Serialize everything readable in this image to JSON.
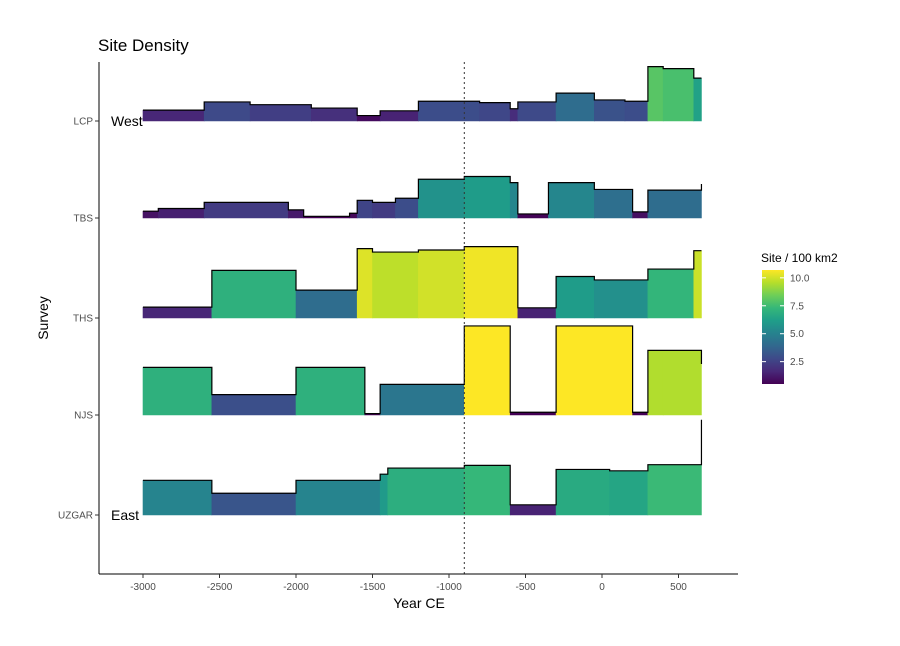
{
  "chart_data": {
    "type": "area",
    "title": "Site Density",
    "xlabel": "Year CE",
    "ylabel": "Survey",
    "xlim": [
      -3300,
      900
    ],
    "x_ticks": [
      -3000,
      -2500,
      -2000,
      -1500,
      -1000,
      -500,
      0,
      500
    ],
    "x_tick_labels": [
      "-3000",
      "-2500",
      "-2000",
      "-1500",
      "-1000",
      "-500",
      "0",
      "500"
    ],
    "vline_x": -900,
    "legend": {
      "title": "Site / 100 km2",
      "position": "right",
      "ticks": [
        2.5,
        5.0,
        7.5,
        10.0
      ],
      "tick_labels": [
        "2.5",
        "5.0",
        "7.5",
        "10.0"
      ],
      "range": [
        0.5,
        10.7
      ]
    },
    "colorscale": [
      "#440154",
      "#482878",
      "#3e4989",
      "#31688e",
      "#26828e",
      "#1f9e89",
      "#35b779",
      "#6ece58",
      "#b5de2b",
      "#fde725"
    ],
    "annotations": [
      {
        "text": "West",
        "series": "LCP"
      },
      {
        "text": "East",
        "series": "UZGAR"
      }
    ],
    "series": [
      {
        "name": "LCP",
        "points": [
          [
            -3000,
            1.6
          ],
          [
            -2600,
            1.6
          ],
          [
            -2600,
            2.8
          ],
          [
            -2300,
            2.8
          ],
          [
            -2300,
            2.4
          ],
          [
            -1900,
            2.4
          ],
          [
            -1900,
            1.9
          ],
          [
            -1600,
            1.9
          ],
          [
            -1600,
            0.8
          ],
          [
            -1450,
            0.8
          ],
          [
            -1450,
            1.5
          ],
          [
            -1200,
            1.5
          ],
          [
            -1200,
            2.9
          ],
          [
            -800,
            2.9
          ],
          [
            -800,
            2.7
          ],
          [
            -600,
            2.7
          ],
          [
            -600,
            1.8
          ],
          [
            -550,
            1.8
          ],
          [
            -550,
            2.8
          ],
          [
            -300,
            2.8
          ],
          [
            -300,
            4.1
          ],
          [
            -50,
            4.1
          ],
          [
            -50,
            3.1
          ],
          [
            150,
            3.1
          ],
          [
            150,
            2.9
          ],
          [
            300,
            2.9
          ],
          [
            300,
            8.0
          ],
          [
            400,
            8.0
          ],
          [
            400,
            7.7
          ],
          [
            600,
            7.7
          ],
          [
            600,
            6.3
          ],
          [
            650,
            6.3
          ]
        ]
      },
      {
        "name": "TBS",
        "points": [
          [
            -3000,
            1.0
          ],
          [
            -2900,
            1.0
          ],
          [
            -2900,
            1.4
          ],
          [
            -2600,
            1.4
          ],
          [
            -2600,
            2.3
          ],
          [
            -2050,
            2.3
          ],
          [
            -2050,
            1.2
          ],
          [
            -1950,
            1.2
          ],
          [
            -1950,
            0.25
          ],
          [
            -1650,
            0.25
          ],
          [
            -1650,
            0.7
          ],
          [
            -1600,
            0.7
          ],
          [
            -1600,
            2.6
          ],
          [
            -1500,
            2.6
          ],
          [
            -1500,
            2.3
          ],
          [
            -1350,
            2.3
          ],
          [
            -1350,
            2.9
          ],
          [
            -1200,
            2.9
          ],
          [
            -1200,
            5.7
          ],
          [
            -900,
            5.7
          ],
          [
            -900,
            6.1
          ],
          [
            -600,
            6.1
          ],
          [
            -600,
            5.2
          ],
          [
            -550,
            5.2
          ],
          [
            -550,
            0.6
          ],
          [
            -350,
            0.6
          ],
          [
            -350,
            5.2
          ],
          [
            -50,
            5.2
          ],
          [
            -50,
            4.2
          ],
          [
            200,
            4.2
          ],
          [
            200,
            0.9
          ],
          [
            300,
            0.9
          ],
          [
            300,
            4.1
          ],
          [
            650,
            4.1
          ],
          [
            650,
            5.0
          ]
        ]
      },
      {
        "name": "THS",
        "points": [
          [
            -3000,
            1.6
          ],
          [
            -2550,
            1.6
          ],
          [
            -2550,
            7.0
          ],
          [
            -2000,
            7.0
          ],
          [
            -2000,
            4.1
          ],
          [
            -1600,
            4.1
          ],
          [
            -1600,
            10.2
          ],
          [
            -1500,
            10.2
          ],
          [
            -1500,
            9.7
          ],
          [
            -1200,
            9.7
          ],
          [
            -1200,
            10.0
          ],
          [
            -900,
            10.0
          ],
          [
            -900,
            10.5
          ],
          [
            -550,
            10.5
          ],
          [
            -550,
            1.5
          ],
          [
            -300,
            1.5
          ],
          [
            -300,
            6.1
          ],
          [
            -50,
            6.1
          ],
          [
            -50,
            5.6
          ],
          [
            300,
            5.6
          ],
          [
            300,
            7.2
          ],
          [
            600,
            7.2
          ],
          [
            600,
            9.9
          ],
          [
            650,
            9.9
          ]
        ]
      },
      {
        "name": "NJS",
        "points": [
          [
            -3000,
            7.0
          ],
          [
            -2550,
            7.0
          ],
          [
            -2550,
            3.0
          ],
          [
            -2000,
            3.0
          ],
          [
            -2000,
            7.0
          ],
          [
            -1550,
            7.0
          ],
          [
            -1550,
            0.2
          ],
          [
            -1450,
            0.2
          ],
          [
            -1450,
            4.5
          ],
          [
            -900,
            4.5
          ],
          [
            -900,
            13.1
          ],
          [
            -600,
            13.1
          ],
          [
            -600,
            0.4
          ],
          [
            -300,
            0.4
          ],
          [
            -300,
            13.1
          ],
          [
            200,
            13.1
          ],
          [
            200,
            0.4
          ],
          [
            300,
            0.4
          ],
          [
            300,
            9.5
          ],
          [
            400,
            9.5
          ],
          [
            400,
            9.5
          ],
          [
            650,
            9.5
          ],
          [
            650,
            7.5
          ]
        ]
      },
      {
        "name": "UZGAR",
        "points": [
          [
            -3000,
            5.1
          ],
          [
            -2550,
            5.1
          ],
          [
            -2550,
            3.2
          ],
          [
            -2000,
            3.2
          ],
          [
            -2000,
            5.1
          ],
          [
            -1450,
            5.1
          ],
          [
            -1450,
            6.0
          ],
          [
            -1400,
            6.0
          ],
          [
            -1400,
            6.9
          ],
          [
            -900,
            6.9
          ],
          [
            -900,
            7.3
          ],
          [
            -600,
            7.3
          ],
          [
            -600,
            1.5
          ],
          [
            -300,
            1.5
          ],
          [
            -300,
            6.7
          ],
          [
            50,
            6.7
          ],
          [
            50,
            6.5
          ],
          [
            300,
            6.5
          ],
          [
            300,
            7.4
          ],
          [
            650,
            7.4
          ],
          [
            650,
            14.0
          ]
        ]
      }
    ]
  }
}
